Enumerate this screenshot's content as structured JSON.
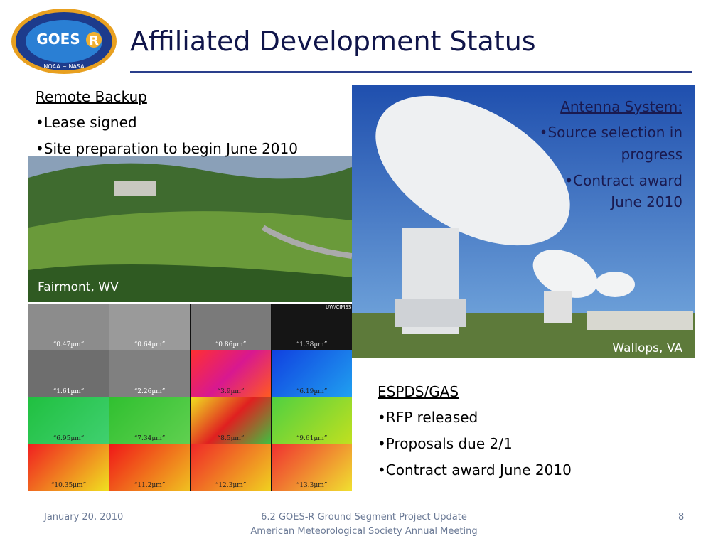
{
  "header": {
    "title": "Affiliated Development Status",
    "logo": {
      "main": "GOES",
      "letter": "R",
      "agencies": "NOAA ~ NASA"
    }
  },
  "remote_backup": {
    "heading": "Remote Backup",
    "bullets": [
      "•Lease signed",
      "•Site preparation to begin June 2010"
    ],
    "caption": "Fairmont, WV"
  },
  "antenna": {
    "heading": "Antenna System:",
    "lines": [
      "•Source selection in",
      "progress",
      "•Contract award",
      "June 2010"
    ],
    "caption": "Wallops, VA"
  },
  "imagery": {
    "credit": "UW/CIMSS",
    "bands": [
      "“0.47µm”",
      "“0.64µm”",
      "“0.86µm”",
      "“1.38µm”",
      "“1.61µm”",
      "“2.26µm”",
      "“3.9µm”",
      "“6.19µm”",
      "“6.95µm”",
      "“7.34µm”",
      "“8.5µm”",
      "“9.61µm”",
      "“10.35µm”",
      "“11.2µm”",
      "“12.3µm”",
      "“13.3µm”"
    ]
  },
  "espds": {
    "heading": "ESPDS/GAS",
    "bullets": [
      "•RFP released",
      "•Proposals due 2/1",
      "•Contract award June 2010"
    ]
  },
  "footer": {
    "date": "January 20, 2010",
    "center": [
      "6.2  GOES-R Ground Segment Project Update",
      "American Meteorological Society Annual Meeting"
    ],
    "page": "8"
  }
}
